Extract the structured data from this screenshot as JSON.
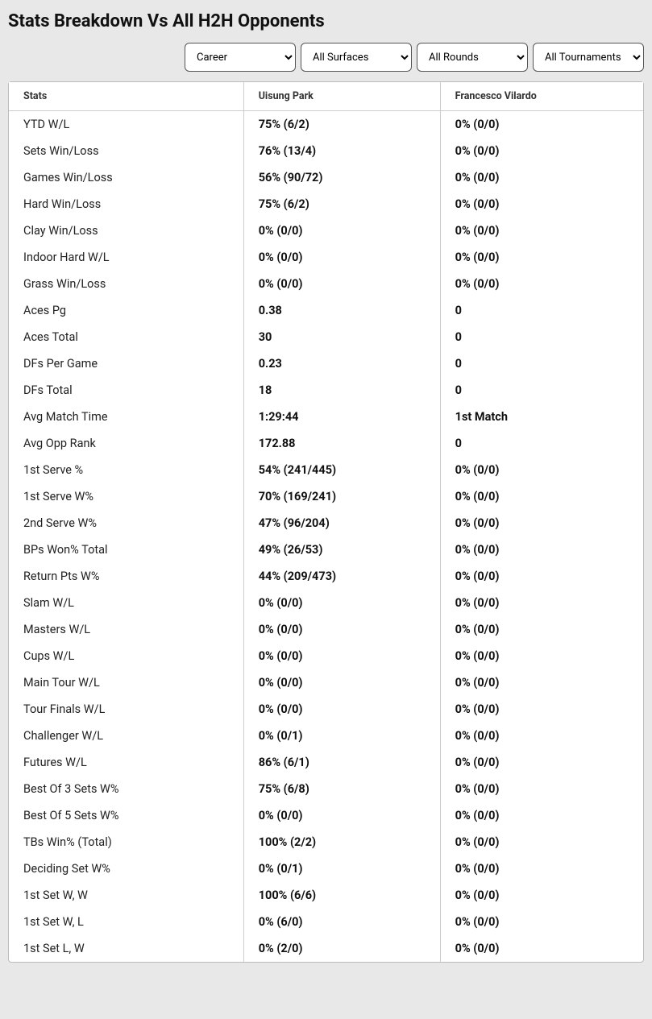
{
  "title": "Stats Breakdown Vs All H2H Opponents",
  "filters": {
    "period": "Career",
    "surface": "All Surfaces",
    "round": "All Rounds",
    "tournament": "All Tournaments"
  },
  "columns": {
    "stats": "Stats",
    "player1": "Uisung Park",
    "player2": "Francesco Vilardo"
  },
  "rows": [
    {
      "label": "YTD W/L",
      "p1": "75% (6/2)",
      "p2": "0% (0/0)"
    },
    {
      "label": "Sets Win/Loss",
      "p1": "76% (13/4)",
      "p2": "0% (0/0)"
    },
    {
      "label": "Games Win/Loss",
      "p1": "56% (90/72)",
      "p2": "0% (0/0)"
    },
    {
      "label": "Hard Win/Loss",
      "p1": "75% (6/2)",
      "p2": "0% (0/0)"
    },
    {
      "label": "Clay Win/Loss",
      "p1": "0% (0/0)",
      "p2": "0% (0/0)"
    },
    {
      "label": "Indoor Hard W/L",
      "p1": "0% (0/0)",
      "p2": "0% (0/0)"
    },
    {
      "label": "Grass Win/Loss",
      "p1": "0% (0/0)",
      "p2": "0% (0/0)"
    },
    {
      "label": "Aces Pg",
      "p1": "0.38",
      "p2": "0"
    },
    {
      "label": "Aces Total",
      "p1": "30",
      "p2": "0"
    },
    {
      "label": "DFs Per Game",
      "p1": "0.23",
      "p2": "0"
    },
    {
      "label": "DFs Total",
      "p1": "18",
      "p2": "0"
    },
    {
      "label": "Avg Match Time",
      "p1": "1:29:44",
      "p2": "1st Match"
    },
    {
      "label": "Avg Opp Rank",
      "p1": "172.88",
      "p2": "0"
    },
    {
      "label": "1st Serve %",
      "p1": "54% (241/445)",
      "p2": "0% (0/0)"
    },
    {
      "label": "1st Serve W%",
      "p1": "70% (169/241)",
      "p2": "0% (0/0)"
    },
    {
      "label": "2nd Serve W%",
      "p1": "47% (96/204)",
      "p2": "0% (0/0)"
    },
    {
      "label": "BPs Won% Total",
      "p1": "49% (26/53)",
      "p2": "0% (0/0)"
    },
    {
      "label": "Return Pts W%",
      "p1": "44% (209/473)",
      "p2": "0% (0/0)"
    },
    {
      "label": "Slam W/L",
      "p1": "0% (0/0)",
      "p2": "0% (0/0)"
    },
    {
      "label": "Masters W/L",
      "p1": "0% (0/0)",
      "p2": "0% (0/0)"
    },
    {
      "label": "Cups W/L",
      "p1": "0% (0/0)",
      "p2": "0% (0/0)"
    },
    {
      "label": "Main Tour W/L",
      "p1": "0% (0/0)",
      "p2": "0% (0/0)"
    },
    {
      "label": "Tour Finals W/L",
      "p1": "0% (0/0)",
      "p2": "0% (0/0)"
    },
    {
      "label": "Challenger W/L",
      "p1": "0% (0/1)",
      "p2": "0% (0/0)"
    },
    {
      "label": "Futures W/L",
      "p1": "86% (6/1)",
      "p2": "0% (0/0)"
    },
    {
      "label": "Best Of 3 Sets W%",
      "p1": "75% (6/8)",
      "p2": "0% (0/0)"
    },
    {
      "label": "Best Of 5 Sets W%",
      "p1": "0% (0/0)",
      "p2": "0% (0/0)"
    },
    {
      "label": "TBs Win% (Total)",
      "p1": "100% (2/2)",
      "p2": "0% (0/0)"
    },
    {
      "label": "Deciding Set W%",
      "p1": "0% (0/1)",
      "p2": "0% (0/0)"
    },
    {
      "label": "1st Set W, W",
      "p1": "100% (6/6)",
      "p2": "0% (0/0)"
    },
    {
      "label": "1st Set W, L",
      "p1": "0% (6/0)",
      "p2": "0% (0/0)"
    },
    {
      "label": "1st Set L, W",
      "p1": "0% (2/0)",
      "p2": "0% (0/0)"
    }
  ],
  "style": {
    "background_color": "#e8e8e8",
    "panel_background": "#ffffff",
    "border_color": "#cccccc",
    "title_fontsize": 22,
    "header_fontsize": 12.5,
    "body_fontsize": 14.5,
    "col_widths_pct": [
      37,
      31,
      32
    ]
  }
}
